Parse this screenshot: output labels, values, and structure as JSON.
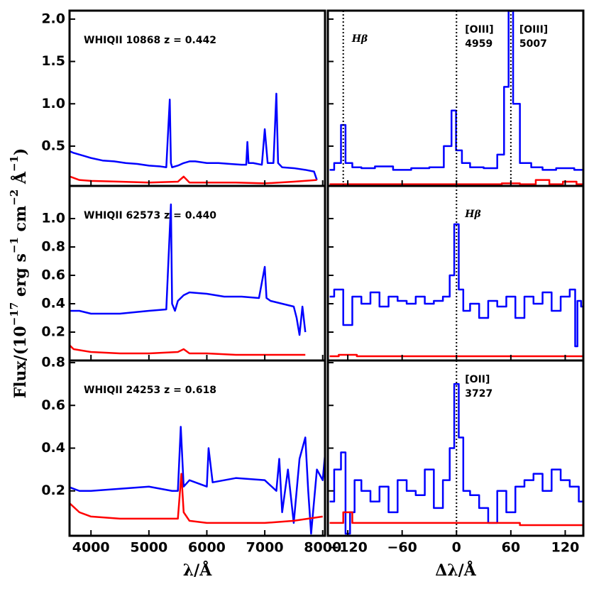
{
  "figure": {
    "y_label": [
      "Flux/(10",
      "−17",
      " erg s",
      "−1",
      " cm",
      "−2",
      " Å",
      "−1",
      ")"
    ]
  },
  "chart_data": [
    {
      "type": "line",
      "label": "WHIQII 10868  z = 0.442",
      "xlim": [
        3630,
        8040
      ],
      "ylim": [
        0.03,
        2.1
      ],
      "xticks": [
        4000,
        5000,
        6000,
        7000,
        8000
      ],
      "yticks": [
        {
          "value": 2,
          "label": "2.0"
        },
        1.5,
        {
          "value": 1,
          "label": "1.0"
        },
        0.5
      ],
      "series": [
        {
          "color": "#0000ff",
          "x": [
            3600,
            3700,
            3800,
            3900,
            4000,
            4200,
            4400,
            4600,
            4800,
            5000,
            5200,
            5300,
            5360,
            5380,
            5400,
            5500,
            5600,
            5700,
            5800,
            6000,
            6200,
            6400,
            6600,
            6680,
            6700,
            6720,
            6800,
            6950,
            7000,
            7050,
            7150,
            7200,
            7230,
            7300,
            7500,
            7700,
            7850,
            7900
          ],
          "values": [
            0.45,
            0.42,
            0.4,
            0.38,
            0.36,
            0.33,
            0.32,
            0.3,
            0.29,
            0.27,
            0.26,
            0.25,
            1.05,
            0.3,
            0.25,
            0.27,
            0.3,
            0.32,
            0.32,
            0.3,
            0.3,
            0.29,
            0.28,
            0.28,
            0.55,
            0.3,
            0.3,
            0.28,
            0.7,
            0.3,
            0.3,
            1.12,
            0.3,
            0.25,
            0.24,
            0.22,
            0.2,
            0.1
          ]
        },
        {
          "color": "#ff0000",
          "x": [
            3600,
            3800,
            4000,
            4500,
            5000,
            5500,
            5600,
            5700,
            6000,
            6500,
            7000,
            7500,
            7900
          ],
          "values": [
            0.15,
            0.1,
            0.09,
            0.08,
            0.07,
            0.08,
            0.14,
            0.07,
            0.07,
            0.07,
            0.06,
            0.08,
            0.1
          ]
        }
      ]
    },
    {
      "type": "line",
      "label": "WHIQII 62573  z = 0.440",
      "xlim": [
        3630,
        8040
      ],
      "ylim": [
        0,
        1.23
      ],
      "xticks": [
        4000,
        5000,
        6000,
        7000,
        8000
      ],
      "yticks": [
        {
          "value": 1,
          "label": "1.0"
        },
        0.8,
        0.6,
        0.4,
        0.2
      ],
      "series": [
        {
          "color": "#0000ff",
          "x": [
            3600,
            3800,
            4000,
            4500,
            5000,
            5300,
            5380,
            5400,
            5450,
            5500,
            5600,
            5700,
            6000,
            6300,
            6600,
            6900,
            7000,
            7030,
            7100,
            7300,
            7500,
            7550,
            7600,
            7650,
            7700
          ],
          "values": [
            0.35,
            0.35,
            0.33,
            0.33,
            0.35,
            0.36,
            1.1,
            0.4,
            0.35,
            0.42,
            0.46,
            0.48,
            0.47,
            0.45,
            0.45,
            0.44,
            0.66,
            0.44,
            0.42,
            0.4,
            0.38,
            0.3,
            0.18,
            0.38,
            0.2
          ]
        },
        {
          "color": "#ff0000",
          "x": [
            3600,
            3700,
            4000,
            4500,
            5000,
            5500,
            5600,
            5700,
            6000,
            6500,
            7000,
            7700
          ],
          "values": [
            0.12,
            0.08,
            0.06,
            0.05,
            0.05,
            0.06,
            0.08,
            0.05,
            0.05,
            0.04,
            0.04,
            0.04
          ]
        }
      ]
    },
    {
      "type": "line",
      "label": "WHIQII 24253  z = 0.618",
      "x_label": "λ/Å",
      "xlim": [
        3630,
        8040
      ],
      "ylim": [
        -0.01,
        0.81
      ],
      "xticks": [
        4000,
        5000,
        6000,
        7000,
        8000
      ],
      "yticks": [
        0.2,
        0.4,
        0.6,
        0.8
      ],
      "series": [
        {
          "color": "#0000ff",
          "x": [
            3600,
            3800,
            4000,
            4500,
            5000,
            5400,
            5500,
            5550,
            5600,
            5700,
            6000,
            6030,
            6100,
            6500,
            7000,
            7200,
            7250,
            7300,
            7400,
            7500,
            7600,
            7700,
            7750,
            7800,
            7900,
            8000,
            8050
          ],
          "values": [
            0.22,
            0.2,
            0.2,
            0.21,
            0.22,
            0.2,
            0.2,
            0.5,
            0.22,
            0.25,
            0.22,
            0.4,
            0.24,
            0.26,
            0.25,
            0.2,
            0.35,
            0.1,
            0.3,
            0.05,
            0.35,
            0.45,
            0.2,
            0.0,
            0.3,
            0.25,
            0.4
          ]
        },
        {
          "color": "#ff0000",
          "x": [
            3600,
            3800,
            4000,
            4500,
            5000,
            5500,
            5560,
            5600,
            5700,
            6000,
            6500,
            7000,
            7500,
            8000
          ],
          "values": [
            0.15,
            0.1,
            0.08,
            0.07,
            0.07,
            0.07,
            0.28,
            0.1,
            0.06,
            0.05,
            0.05,
            0.05,
            0.06,
            0.08
          ]
        }
      ]
    },
    {
      "type": "line",
      "drawstyle": "steps-mid",
      "xlim": [
        -142,
        140
      ],
      "ylim": [
        0.03,
        2.1
      ],
      "xticks": [
        {
          "value": -120,
          "label": "−120"
        },
        {
          "value": -60,
          "label": "−60"
        },
        0,
        60,
        120
      ],
      "lines": [
        {
          "x": -125,
          "label": [
            "Hβ"
          ]
        },
        {
          "x": 0,
          "label": [
            "[OIII]",
            "4959"
          ]
        },
        {
          "x": 60,
          "label": [
            "[OIII]",
            "5007"
          ]
        }
      ],
      "series": [
        {
          "color": "#0000ff",
          "x": [
            -140,
            -130,
            -125,
            -120,
            -110,
            -100,
            -80,
            -60,
            -40,
            -20,
            -8,
            -3,
            2,
            10,
            20,
            40,
            50,
            55,
            60,
            65,
            75,
            90,
            100,
            120,
            140
          ],
          "values": [
            0.22,
            0.3,
            0.75,
            0.3,
            0.25,
            0.24,
            0.26,
            0.22,
            0.24,
            0.25,
            0.5,
            0.92,
            0.45,
            0.3,
            0.25,
            0.24,
            0.4,
            1.2,
            2.1,
            1.0,
            0.3,
            0.25,
            0.22,
            0.24,
            0.22
          ]
        },
        {
          "color": "#ff0000",
          "x": [
            -140,
            -100,
            -60,
            0,
            40,
            60,
            80,
            95,
            110,
            125,
            140
          ],
          "values": [
            0.05,
            0.05,
            0.05,
            0.05,
            0.05,
            0.06,
            0.05,
            0.1,
            0.05,
            0.08,
            0.05
          ]
        }
      ]
    },
    {
      "type": "line",
      "drawstyle": "steps-mid",
      "xlim": [
        -142,
        140
      ],
      "ylim": [
        0,
        1.23
      ],
      "xticks": [
        {
          "value": -120,
          "label": "−120"
        },
        {
          "value": -60,
          "label": "−60"
        },
        0,
        60,
        120
      ],
      "lines": [
        {
          "x": 0,
          "label": [
            "Hβ"
          ]
        }
      ],
      "series": [
        {
          "color": "#0000ff",
          "x": [
            -140,
            -130,
            -120,
            -110,
            -100,
            -90,
            -80,
            -70,
            -60,
            -50,
            -40,
            -30,
            -20,
            -10,
            -5,
            0,
            5,
            10,
            20,
            30,
            40,
            50,
            60,
            70,
            80,
            90,
            100,
            110,
            120,
            130,
            132,
            135,
            140
          ],
          "values": [
            0.45,
            0.5,
            0.25,
            0.45,
            0.4,
            0.48,
            0.38,
            0.45,
            0.42,
            0.4,
            0.45,
            0.4,
            0.42,
            0.45,
            0.6,
            0.96,
            0.5,
            0.35,
            0.4,
            0.3,
            0.42,
            0.38,
            0.45,
            0.3,
            0.45,
            0.4,
            0.48,
            0.35,
            0.45,
            0.5,
            0.1,
            0.42,
            0.38
          ]
        },
        {
          "color": "#ff0000",
          "x": [
            -140,
            -120,
            -100,
            0,
            100,
            140
          ],
          "values": [
            0.03,
            0.04,
            0.03,
            0.03,
            0.03,
            0.03
          ]
        }
      ]
    },
    {
      "type": "line",
      "drawstyle": "steps-mid",
      "x_label": "Δλ/Å",
      "xlim": [
        -142,
        140
      ],
      "ylim": [
        -0.01,
        0.81
      ],
      "xticks": [
        {
          "value": -120,
          "label": "−120"
        },
        {
          "value": -60,
          "label": "−60"
        },
        0,
        60,
        120
      ],
      "lines": [
        {
          "x": 0,
          "label": [
            "[OII]",
            "3727"
          ]
        }
      ],
      "series": [
        {
          "color": "#0000ff",
          "x": [
            -140,
            -130,
            -125,
            -120,
            -115,
            -110,
            -100,
            -90,
            -80,
            -70,
            -60,
            -50,
            -40,
            -30,
            -20,
            -10,
            -5,
            0,
            5,
            10,
            20,
            30,
            40,
            50,
            60,
            70,
            80,
            90,
            100,
            110,
            120,
            130,
            140
          ],
          "values": [
            0.15,
            0.3,
            0.38,
            0.0,
            0.1,
            0.25,
            0.2,
            0.15,
            0.22,
            0.1,
            0.25,
            0.2,
            0.18,
            0.3,
            0.12,
            0.25,
            0.4,
            0.7,
            0.45,
            0.2,
            0.18,
            0.12,
            0.05,
            0.2,
            0.1,
            0.22,
            0.25,
            0.28,
            0.2,
            0.3,
            0.25,
            0.22,
            0.15
          ]
        },
        {
          "color": "#ff0000",
          "x": [
            -140,
            -130,
            -120,
            -110,
            -100,
            0,
            140
          ],
          "values": [
            0.05,
            0.05,
            0.1,
            0.05,
            0.05,
            0.05,
            0.04
          ]
        }
      ]
    }
  ]
}
